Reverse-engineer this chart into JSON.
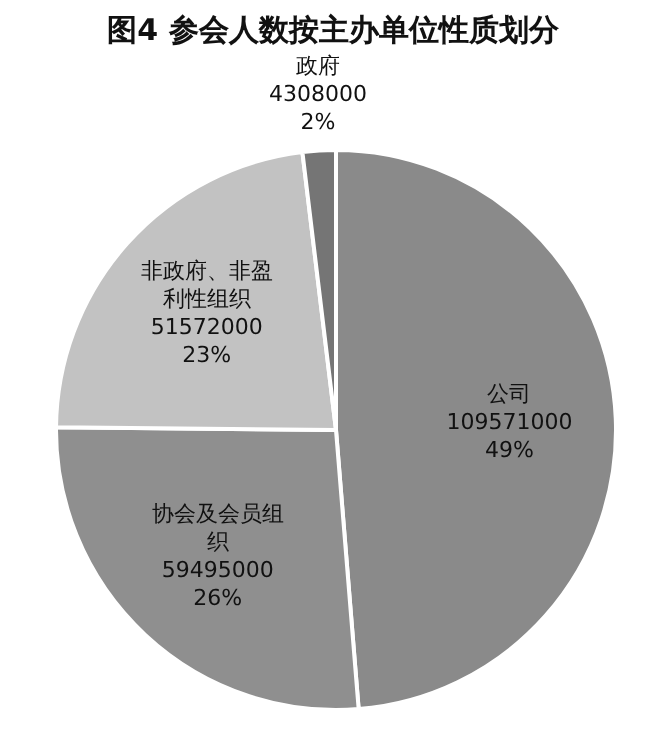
{
  "chart_data": {
    "type": "pie",
    "title": "图4 参会人数按主办单位性质划分",
    "categories": [
      "公司",
      "协会及会员组织",
      "非政府、非盈利性组织",
      "政府"
    ],
    "values": [
      109571000,
      59495000,
      51572000,
      4308000
    ],
    "value_labels": [
      "109571000\n49%",
      "59495000\n26%",
      "51572000\n23%",
      "4308000\n2%"
    ],
    "colors": [
      "#8a8a8a",
      "#8f8f8f",
      "#c2c2c2",
      "#757575"
    ]
  }
}
